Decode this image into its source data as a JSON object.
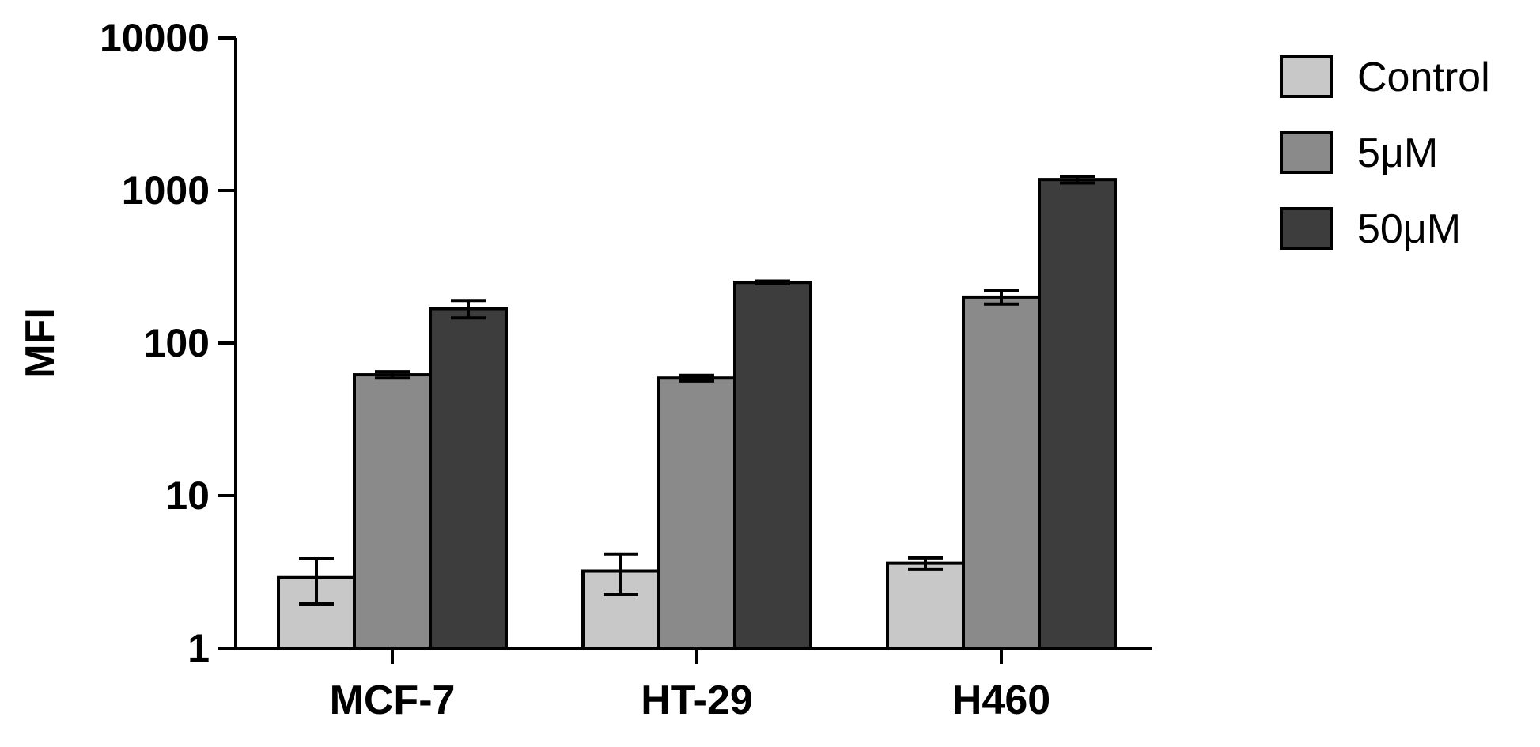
{
  "chart_data": {
    "type": "bar",
    "ylabel": "MFI",
    "xlabel": "",
    "yscale": "log",
    "ylim": [
      1,
      10000
    ],
    "yticks": [
      1,
      10,
      100,
      1000,
      10000
    ],
    "ytick_labels": [
      "1",
      "10",
      "100",
      "1000",
      "10000"
    ],
    "categories": [
      "MCF-7",
      "HT-29",
      "H460"
    ],
    "legend_position": "top-right",
    "series": [
      {
        "name": "Control",
        "color": "#c8c8c8",
        "values": [
          2.9,
          3.2,
          3.6
        ],
        "errors": [
          0.95,
          0.95,
          0.3
        ]
      },
      {
        "name": "5μM",
        "color": "#8a8a8a",
        "values": [
          62,
          59,
          200
        ],
        "errors": [
          3,
          2.5,
          20
        ]
      },
      {
        "name": "50μM",
        "color": "#3d3d3d",
        "values": [
          168,
          250,
          1180
        ],
        "errors": [
          22,
          5,
          60
        ]
      }
    ]
  }
}
